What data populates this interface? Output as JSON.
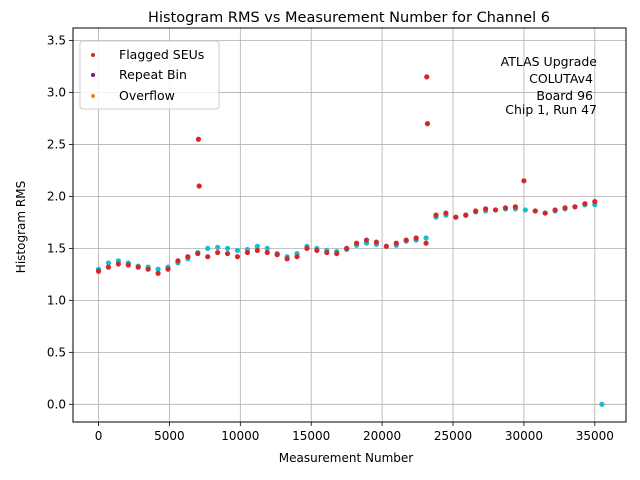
{
  "chart_data": {
    "type": "scatter",
    "title": "Histogram RMS vs Measurement Number for Channel 6",
    "xlabel": "Measurement Number",
    "ylabel": "Histogram RMS",
    "xlim": [
      -1800,
      37200
    ],
    "ylim": [
      -0.17,
      3.62
    ],
    "xticks": [
      0,
      5000,
      10000,
      15000,
      20000,
      25000,
      30000,
      35000
    ],
    "yticks": [
      0.0,
      0.5,
      1.0,
      1.5,
      2.0,
      2.5,
      3.0,
      3.5
    ],
    "grid": true,
    "legend_position": "top-left",
    "annotation": [
      "ATLAS Upgrade",
      "COLUTAv4",
      "Board 96",
      "Chip 1, Run 47"
    ],
    "base_series": {
      "name": "Histogram RMS",
      "color": "#17becf",
      "x": [
        0,
        700,
        1400,
        2100,
        2800,
        3500,
        4200,
        4900,
        5600,
        6300,
        7000,
        7700,
        8400,
        9100,
        9800,
        10500,
        11200,
        11900,
        12600,
        13300,
        14000,
        14700,
        15400,
        16100,
        16800,
        17500,
        18200,
        18900,
        19600,
        20300,
        21000,
        21700,
        22400,
        23100,
        23800,
        24500,
        25200,
        25900,
        26600,
        27300,
        28000,
        28700,
        29400,
        30100,
        30800,
        31500,
        32200,
        32900,
        33600,
        34300,
        35000,
        35500
      ],
      "y": [
        1.3,
        1.36,
        1.38,
        1.36,
        1.33,
        1.32,
        1.3,
        1.32,
        1.36,
        1.4,
        1.46,
        1.5,
        1.51,
        1.5,
        1.48,
        1.49,
        1.52,
        1.5,
        1.45,
        1.42,
        1.45,
        1.52,
        1.5,
        1.48,
        1.47,
        1.49,
        1.53,
        1.55,
        1.54,
        1.52,
        1.53,
        1.57,
        1.58,
        1.6,
        1.8,
        1.82,
        1.8,
        1.82,
        1.85,
        1.86,
        1.87,
        1.88,
        1.88,
        1.87,
        1.86,
        1.84,
        1.86,
        1.88,
        1.9,
        1.92,
        1.92,
        0.0
      ]
    },
    "series": [
      {
        "name": "Flagged SEUs",
        "color": "#d62728",
        "x": [
          0,
          700,
          1400,
          2100,
          2800,
          3500,
          4200,
          4900,
          5600,
          6300,
          7000,
          7050,
          7100,
          7700,
          8400,
          9100,
          9800,
          10500,
          11200,
          11900,
          12600,
          13300,
          14000,
          14700,
          15400,
          16100,
          16800,
          17500,
          18200,
          18900,
          19600,
          20300,
          21000,
          21700,
          22400,
          23100,
          23150,
          23200,
          23800,
          24500,
          25200,
          25900,
          26600,
          27300,
          28000,
          28700,
          29400,
          30000,
          30800,
          31500,
          32200,
          32900,
          33600,
          34300,
          35000
        ],
        "y": [
          1.28,
          1.32,
          1.35,
          1.34,
          1.32,
          1.3,
          1.26,
          1.3,
          1.38,
          1.42,
          1.45,
          2.55,
          2.1,
          1.42,
          1.46,
          1.45,
          1.42,
          1.46,
          1.48,
          1.46,
          1.44,
          1.4,
          1.42,
          1.5,
          1.48,
          1.46,
          1.45,
          1.5,
          1.55,
          1.58,
          1.56,
          1.52,
          1.55,
          1.58,
          1.6,
          1.55,
          3.15,
          2.7,
          1.82,
          1.84,
          1.8,
          1.82,
          1.86,
          1.88,
          1.87,
          1.89,
          1.9,
          2.15,
          1.86,
          1.84,
          1.87,
          1.89,
          1.9,
          1.93,
          1.95
        ]
      },
      {
        "name": "Repeat Bin",
        "color": "#7f0f7e",
        "x": [],
        "y": []
      },
      {
        "name": "Overflow",
        "color": "#ff7f0e",
        "x": [],
        "y": []
      }
    ]
  }
}
